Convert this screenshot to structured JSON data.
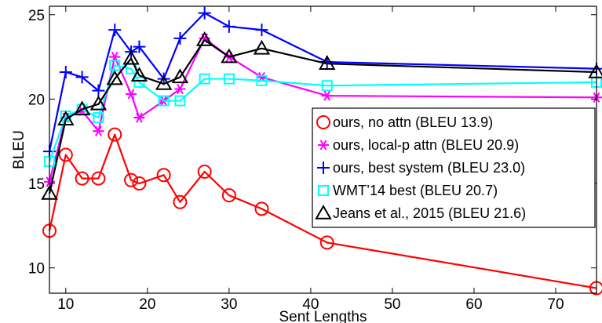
{
  "chart_data": {
    "type": "line",
    "xlabel": "Sent Lengths",
    "ylabel": "BLEU",
    "xlim": [
      8,
      75
    ],
    "ylim": [
      8.5,
      25.5
    ],
    "x_ticks": [
      10,
      20,
      30,
      40,
      50,
      60,
      70
    ],
    "y_ticks": [
      10,
      15,
      20,
      25
    ],
    "grid": false,
    "legend_position": "right",
    "series": [
      {
        "name": "ours, no attn (BLEU 13.9)",
        "color": "#ff0000",
        "marker": "circle",
        "x": [
          8,
          10,
          12,
          14,
          16,
          18,
          19,
          22,
          24,
          27,
          30,
          34,
          42,
          75
        ],
        "y": [
          12.2,
          16.7,
          15.3,
          15.3,
          17.9,
          15.2,
          15.0,
          15.5,
          13.9,
          15.7,
          14.3,
          13.5,
          11.5,
          8.8
        ]
      },
      {
        "name": "ours, local-p attn (BLEU 20.9)",
        "color": "#ff00ff",
        "marker": "asterisk",
        "x": [
          8,
          10,
          12,
          14,
          16,
          18,
          19,
          22,
          24,
          27,
          30,
          34,
          42,
          75
        ],
        "y": [
          15.1,
          18.9,
          19.3,
          18.1,
          22.5,
          20.3,
          18.9,
          19.9,
          20.6,
          23.6,
          22.5,
          21.3,
          20.2,
          20.1
        ]
      },
      {
        "name": "ours, best system (BLEU 23.0)",
        "color": "#0000ff",
        "marker": "plus",
        "x": [
          8,
          10,
          12,
          14,
          16,
          18,
          19,
          22,
          24,
          27,
          30,
          34,
          42,
          75
        ],
        "y": [
          16.9,
          21.6,
          21.3,
          20.5,
          24.1,
          22.8,
          23.1,
          21.2,
          23.6,
          25.1,
          24.3,
          24.1,
          22.2,
          21.8
        ]
      },
      {
        "name": "WMT’14 best (BLEU 20.7)",
        "color": "#00ffff",
        "marker": "square",
        "x": [
          8,
          10,
          12,
          14,
          16,
          18,
          19,
          22,
          24,
          27,
          30,
          34,
          42,
          75
        ],
        "y": [
          16.3,
          19.0,
          19.4,
          18.9,
          22.0,
          21.8,
          21.0,
          19.9,
          19.9,
          21.2,
          21.2,
          21.1,
          20.8,
          21.0
        ]
      },
      {
        "name": "Jeans et al., 2015 (BLEU 21.6)",
        "color": "#000000",
        "marker": "triangle",
        "x": [
          8,
          10,
          12,
          14,
          16,
          18,
          19,
          22,
          24,
          27,
          30,
          34,
          42,
          75
        ],
        "y": [
          14.4,
          18.8,
          19.4,
          19.7,
          21.2,
          22.4,
          21.4,
          20.9,
          21.3,
          23.5,
          22.5,
          23.0,
          22.1,
          21.6
        ]
      }
    ]
  }
}
